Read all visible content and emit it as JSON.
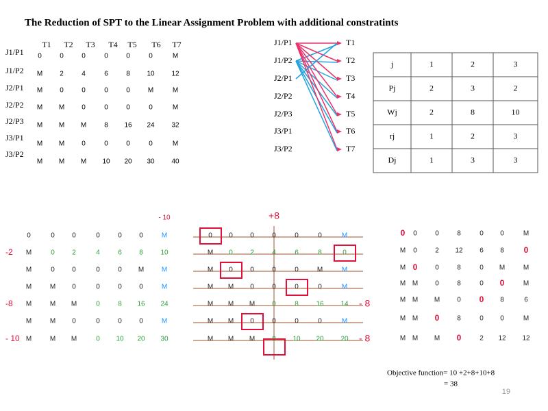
{
  "title": "The Reduction of SPT to the Linear Assignment Problem with additional constratints",
  "cost_matrix": {
    "columns": [
      "T1",
      "T2",
      "T3",
      "T4",
      "T5",
      "T6",
      "T7"
    ],
    "rows": [
      {
        "label": "J1/P1",
        "cells": [
          "0",
          "0",
          "0",
          "0",
          "0",
          "0",
          "M"
        ]
      },
      {
        "label": "J1/P2",
        "cells": [
          "M",
          "2",
          "4",
          "6",
          "8",
          "10",
          "12"
        ]
      },
      {
        "label": "J2/P1",
        "cells": [
          "M",
          "0",
          "0",
          "0",
          "0",
          "M",
          "M"
        ]
      },
      {
        "label": "J2/P2",
        "cells": [
          "M",
          "M",
          "0",
          "0",
          "0",
          "0",
          "M"
        ]
      },
      {
        "label": "J2/P3",
        "cells": [
          "M",
          "M",
          "M",
          "8",
          "16",
          "24",
          "32"
        ]
      },
      {
        "label": "J3/P1",
        "cells": [
          "M",
          "M",
          "0",
          "0",
          "0",
          "0",
          "M"
        ]
      },
      {
        "label": "J3/P2",
        "cells": [
          "M",
          "M",
          "M",
          "10",
          "20",
          "30",
          "40"
        ]
      }
    ]
  },
  "graph": {
    "left": [
      "J1/P1",
      "J1/P2",
      "J2/P1",
      "J2/P2",
      "J2/P3",
      "J3/P1",
      "J3/P2"
    ],
    "right": [
      "T1",
      "T2",
      "T3",
      "T4",
      "T5",
      "T6",
      "T7"
    ]
  },
  "job_table": {
    "rows": [
      [
        "j",
        "1",
        "2",
        "3"
      ],
      [
        "Pj",
        "2",
        "3",
        "2"
      ],
      [
        "Wj",
        "2",
        "8",
        "10"
      ],
      [
        "rj",
        "1",
        "2",
        "3"
      ],
      [
        "Dj",
        "1",
        "3",
        "3"
      ]
    ]
  },
  "step1": {
    "column_adjustments": [
      null,
      null,
      null,
      null,
      null,
      null,
      "- 10"
    ],
    "rows": [
      {
        "cells": [
          "0",
          "0",
          "0",
          "0",
          "0",
          "0",
          "M"
        ],
        "adjustment": null,
        "colors": "kkkkkkb"
      },
      {
        "cells": [
          "M",
          "0",
          "2",
          "4",
          "6",
          "8",
          "10"
        ],
        "adjustment": "-2",
        "colors": "kgggggg"
      },
      {
        "cells": [
          "M",
          "0",
          "0",
          "0",
          "0",
          "M",
          "M"
        ],
        "adjustment": null,
        "colors": "kkkkkkb"
      },
      {
        "cells": [
          "M",
          "M",
          "0",
          "0",
          "0",
          "0",
          "M"
        ],
        "adjustment": null,
        "colors": "kkkkkkb"
      },
      {
        "cells": [
          "M",
          "M",
          "M",
          "0",
          "8",
          "16",
          "24"
        ],
        "adjustment": "-8",
        "colors": "kkkgggg"
      },
      {
        "cells": [
          "M",
          "M",
          "0",
          "0",
          "0",
          "0",
          "M"
        ],
        "adjustment": null,
        "colors": "kkkkkkb"
      },
      {
        "cells": [
          "M",
          "M",
          "M",
          "0",
          "10",
          "20",
          "30"
        ],
        "adjustment": "- 10",
        "colors": "kkkgggg"
      }
    ]
  },
  "step2": {
    "column_adjustments": [
      null,
      null,
      null,
      "+8",
      null,
      null,
      null
    ],
    "rows": [
      {
        "cells": [
          "0",
          "0",
          "0",
          "0",
          "0",
          "0",
          "M"
        ],
        "adjustment": null,
        "colors": "kkkkkkb"
      },
      {
        "cells": [
          "M",
          "0",
          "2",
          "4",
          "6",
          "8",
          "0"
        ],
        "adjustment": null,
        "colors": "kgggggg"
      },
      {
        "cells": [
          "M",
          "0",
          "0",
          "0",
          "0",
          "M",
          "M"
        ],
        "adjustment": null,
        "colors": "kkkkkkb"
      },
      {
        "cells": [
          "M",
          "M",
          "0",
          "0",
          "0",
          "0",
          "M"
        ],
        "adjustment": null,
        "colors": "kkkkkkb"
      },
      {
        "cells": [
          "M",
          "M",
          "M",
          "0",
          "8",
          "16",
          "14"
        ],
        "adjustment": "- 8",
        "colors": "kkkgggg"
      },
      {
        "cells": [
          "M",
          "M",
          "0",
          "0",
          "0",
          "0",
          "M"
        ],
        "adjustment": null,
        "colors": "kkkkkkb"
      },
      {
        "cells": [
          "M",
          "M",
          "M",
          "0",
          "10",
          "20",
          "20"
        ],
        "adjustment": "- 8",
        "colors": "kkkgggg"
      }
    ]
  },
  "step3": {
    "rows": [
      {
        "cells": [
          "0",
          "0",
          "0",
          "8",
          "0",
          "0",
          "M"
        ],
        "colors": "rkkkkkk"
      },
      {
        "cells": [
          "M",
          "0",
          "2",
          "12",
          "6",
          "8",
          "0"
        ],
        "colors": "kkkkkkr"
      },
      {
        "cells": [
          "M",
          "0",
          "0",
          "8",
          "0",
          "M",
          "M"
        ],
        "colors": "krkkkkk"
      },
      {
        "cells": [
          "M",
          "M",
          "0",
          "8",
          "0",
          "0",
          "M"
        ],
        "colors": "kkkkkrk"
      },
      {
        "cells": [
          "M",
          "M",
          "M",
          "0",
          "0",
          "8",
          "6"
        ],
        "colors": "kkkkrkk"
      },
      {
        "cells": [
          "M",
          "M",
          "0",
          "8",
          "0",
          "0",
          "M"
        ],
        "colors": "kkrkkkk"
      },
      {
        "cells": [
          "M",
          "M",
          "M",
          "0",
          "2",
          "12",
          "12"
        ],
        "colors": "kkkrkkk"
      }
    ]
  },
  "objective": {
    "line1": "Objective function= 10 +2+8+10+8",
    "line2": "= 38"
  },
  "page_number": "19"
}
